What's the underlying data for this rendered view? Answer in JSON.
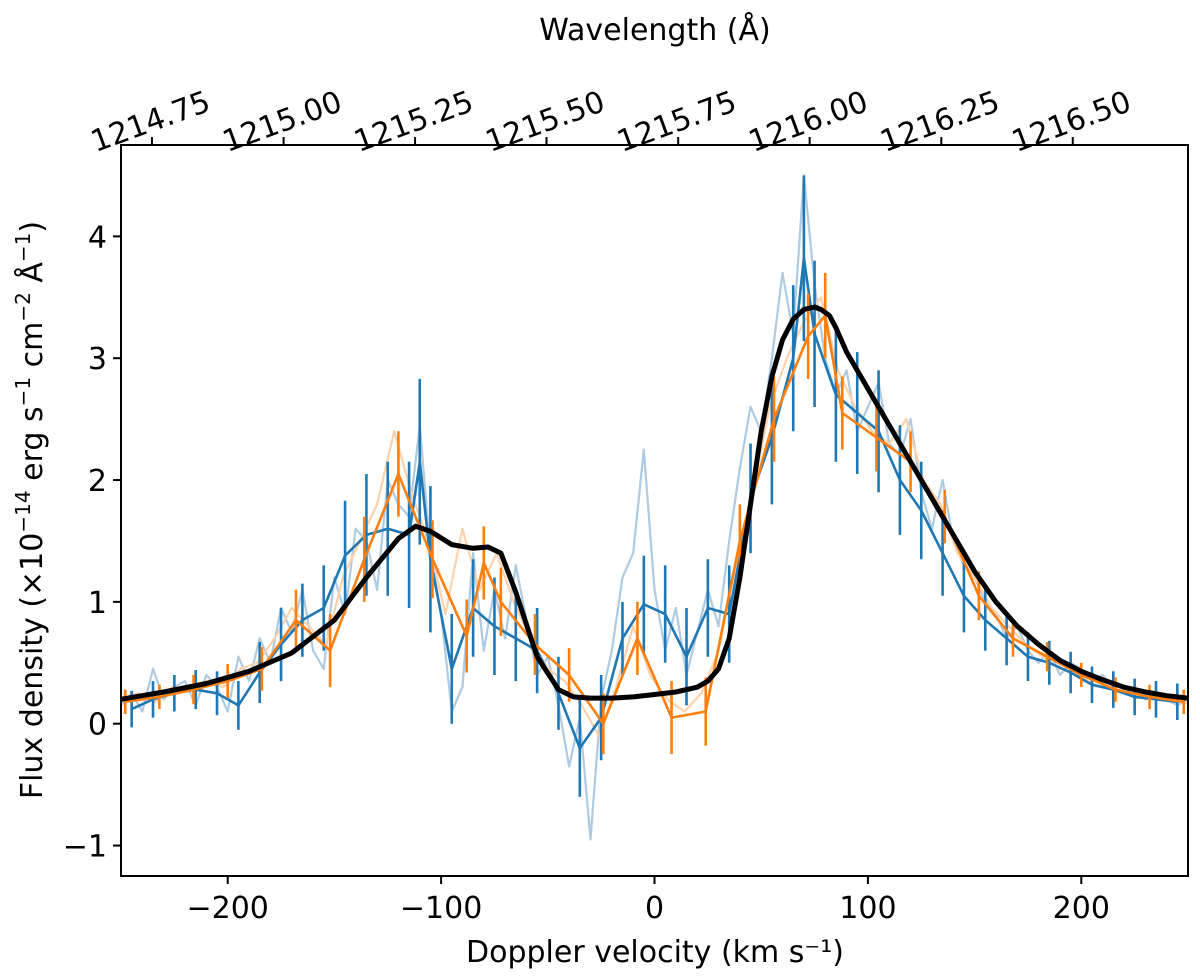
{
  "chart_data": {
    "type": "line",
    "title": "",
    "xlabel": "Doppler velocity (km s⁻¹)",
    "ylabel_parts": {
      "prefix": "Flux density (×10",
      "exp1": "−14",
      "mid1": " erg s",
      "exp2": "−1",
      "mid2": " cm",
      "exp3": "−2",
      "mid3": " Å",
      "exp4": "−1",
      "suffix": ")"
    },
    "top_xlabel": "Wavelength (Å)",
    "xlim": [
      -250,
      250
    ],
    "ylim": [
      -1.25,
      4.75
    ],
    "xticks": [
      -200,
      -100,
      0,
      100,
      200
    ],
    "xtick_labels": [
      "−200",
      "−100",
      "0",
      "100",
      "200"
    ],
    "yticks": [
      -1,
      0,
      1,
      2,
      3,
      4
    ],
    "ytick_labels": [
      "−1",
      "0",
      "1",
      "2",
      "3",
      "4"
    ],
    "top_xticks_velocity": [
      -235.5,
      -173.8,
      -112.2,
      -50.6,
      11.1,
      72.7,
      134.4,
      196.0
    ],
    "top_xtick_labels": [
      "1214.75",
      "1215.00",
      "1215.25",
      "1215.50",
      "1215.75",
      "1216.00",
      "1216.25",
      "1216.50"
    ],
    "top_xtick_rotation_deg": -20,
    "colors": {
      "model": "#000000",
      "blue": "#1f77b4",
      "blue_raw": "#aecbe2",
      "orange": "#ff7f0e",
      "orange_raw": "#ffd2ac"
    },
    "series": [
      {
        "name": "model",
        "style": "thick",
        "x": [
          -250,
          -230,
          -210,
          -190,
          -170,
          -150,
          -135,
          -120,
          -112,
          -105,
          -95,
          -85,
          -78,
          -72,
          -65,
          -55,
          -45,
          -38,
          -30,
          -20,
          -10,
          0,
          10,
          20,
          25,
          30,
          35,
          40,
          45,
          50,
          55,
          60,
          65,
          70,
          75,
          78,
          82,
          85,
          90,
          100,
          110,
          120,
          130,
          140,
          150,
          160,
          170,
          180,
          190,
          200,
          210,
          220,
          230,
          240,
          250
        ],
        "y": [
          0.2,
          0.26,
          0.33,
          0.43,
          0.58,
          0.85,
          1.2,
          1.52,
          1.62,
          1.58,
          1.47,
          1.44,
          1.45,
          1.4,
          1.08,
          0.55,
          0.28,
          0.22,
          0.21,
          0.21,
          0.22,
          0.24,
          0.26,
          0.3,
          0.35,
          0.45,
          0.7,
          1.2,
          1.8,
          2.4,
          2.85,
          3.15,
          3.32,
          3.4,
          3.42,
          3.4,
          3.35,
          3.25,
          3.05,
          2.75,
          2.45,
          2.15,
          1.85,
          1.55,
          1.25,
          1.0,
          0.8,
          0.65,
          0.52,
          0.43,
          0.36,
          0.3,
          0.26,
          0.23,
          0.21
        ]
      },
      {
        "name": "blue-binned",
        "style": "errorbar",
        "x": [
          -245,
          -235,
          -225,
          -215,
          -205,
          -195,
          -185,
          -175,
          -165,
          -155,
          -145,
          -135,
          -125,
          -115,
          -110,
          -105,
          -95,
          -85,
          -75,
          -65,
          -55,
          -45,
          -35,
          -25,
          -15,
          -5,
          5,
          15,
          25,
          35,
          45,
          55,
          65,
          70,
          75,
          85,
          95,
          105,
          115,
          125,
          135,
          145,
          155,
          165,
          175,
          185,
          195,
          205,
          215,
          225,
          235,
          245
        ],
        "y": [
          0.12,
          0.2,
          0.25,
          0.28,
          0.25,
          0.15,
          0.42,
          0.65,
          0.85,
          0.95,
          1.38,
          1.55,
          1.6,
          1.55,
          2.15,
          1.35,
          0.45,
          0.95,
          0.8,
          0.7,
          0.6,
          0.25,
          -0.2,
          0.05,
          0.7,
          0.98,
          0.9,
          0.55,
          0.95,
          0.9,
          1.85,
          2.35,
          3.0,
          3.82,
          3.2,
          2.7,
          2.55,
          2.4,
          2.0,
          1.75,
          1.4,
          1.05,
          0.85,
          0.7,
          0.55,
          0.5,
          0.42,
          0.32,
          0.28,
          0.22,
          0.2,
          0.18
        ],
        "err": [
          0.15,
          0.15,
          0.15,
          0.16,
          0.18,
          0.2,
          0.25,
          0.3,
          0.3,
          0.35,
          0.45,
          0.5,
          0.55,
          0.6,
          0.68,
          0.6,
          0.45,
          0.4,
          0.4,
          0.35,
          0.35,
          0.3,
          0.4,
          0.35,
          0.3,
          0.4,
          0.4,
          0.4,
          0.4,
          0.4,
          0.45,
          0.55,
          0.6,
          0.68,
          0.6,
          0.55,
          0.5,
          0.5,
          0.45,
          0.4,
          0.35,
          0.3,
          0.25,
          0.22,
          0.2,
          0.18,
          0.17,
          0.15,
          0.15,
          0.15,
          0.15,
          0.15
        ]
      },
      {
        "name": "orange-binned",
        "style": "errorbar",
        "x": [
          -248,
          -232,
          -216,
          -200,
          -184,
          -168,
          -152,
          -136,
          -120,
          -104,
          -88,
          -80,
          -72,
          -56,
          -40,
          -24,
          -8,
          8,
          24,
          40,
          56,
          72,
          80,
          88,
          104,
          120,
          136,
          152,
          168,
          184,
          200,
          216,
          232,
          248
        ],
        "y": [
          0.18,
          0.22,
          0.28,
          0.35,
          0.45,
          0.85,
          0.6,
          1.35,
          2.05,
          1.35,
          0.72,
          1.32,
          1.0,
          0.65,
          0.4,
          0.0,
          0.7,
          0.05,
          0.1,
          1.5,
          2.5,
          3.18,
          3.35,
          2.55,
          2.35,
          2.15,
          1.7,
          1.05,
          0.7,
          0.55,
          0.4,
          0.28,
          0.22,
          0.18
        ],
        "err": [
          0.1,
          0.1,
          0.12,
          0.14,
          0.18,
          0.25,
          0.3,
          0.35,
          0.35,
          0.32,
          0.3,
          0.3,
          0.28,
          0.25,
          0.22,
          0.25,
          0.3,
          0.3,
          0.28,
          0.3,
          0.35,
          0.35,
          0.35,
          0.3,
          0.28,
          0.25,
          0.22,
          0.2,
          0.15,
          0.12,
          0.1,
          0.1,
          0.1,
          0.1
        ]
      },
      {
        "name": "blue-raw",
        "style": "faint",
        "x": [
          -250,
          -245,
          -240,
          -235,
          -230,
          -225,
          -220,
          -215,
          -210,
          -205,
          -200,
          -195,
          -190,
          -185,
          -180,
          -175,
          -170,
          -165,
          -160,
          -155,
          -150,
          -145,
          -140,
          -135,
          -130,
          -125,
          -120,
          -115,
          -110,
          -105,
          -100,
          -95,
          -90,
          -85,
          -80,
          -75,
          -70,
          -65,
          -60,
          -55,
          -50,
          -45,
          -40,
          -35,
          -30,
          -25,
          -20,
          -15,
          -10,
          -5,
          0,
          5,
          10,
          15,
          20,
          25,
          30,
          35,
          40,
          45,
          50,
          55,
          60,
          65,
          70,
          75,
          80,
          85,
          90,
          95,
          100,
          105,
          110,
          115,
          120,
          125,
          130,
          135,
          140,
          145,
          150,
          155,
          160,
          165,
          170,
          175,
          180,
          185,
          190,
          195,
          200,
          205,
          210,
          215,
          220,
          225,
          230,
          235,
          240,
          245,
          250
        ],
        "y": [
          0.15,
          0.25,
          0.1,
          0.45,
          0.2,
          0.3,
          0.35,
          0.15,
          0.4,
          0.3,
          0.1,
          0.55,
          0.35,
          0.7,
          0.5,
          0.95,
          0.75,
          1.1,
          0.6,
          0.45,
          1.2,
          0.9,
          1.6,
          1.5,
          1.1,
          2.0,
          1.8,
          1.7,
          2.45,
          1.4,
          0.9,
          0.1,
          0.3,
          1.4,
          0.6,
          1.1,
          0.7,
          1.3,
          0.85,
          0.4,
          0.55,
          0.15,
          -0.35,
          0.05,
          -0.95,
          0.2,
          0.6,
          1.2,
          1.4,
          2.25,
          1.1,
          0.6,
          0.95,
          0.4,
          0.75,
          1.1,
          0.8,
          1.5,
          2.1,
          2.6,
          2.4,
          3.0,
          3.7,
          3.2,
          4.5,
          3.6,
          3.0,
          2.7,
          2.9,
          2.4,
          2.6,
          2.8,
          2.3,
          2.2,
          2.5,
          1.9,
          1.6,
          2.0,
          1.5,
          1.3,
          1.2,
          1.0,
          0.9,
          0.7,
          0.8,
          0.6,
          0.5,
          0.6,
          0.4,
          0.5,
          0.45,
          0.35,
          0.4,
          0.3,
          0.25,
          0.3,
          0.2,
          0.25,
          0.2,
          0.15,
          0.2
        ]
      },
      {
        "name": "orange-raw",
        "style": "faint",
        "x": [
          -250,
          -242,
          -234,
          -226,
          -218,
          -210,
          -202,
          -194,
          -186,
          -178,
          -170,
          -162,
          -154,
          -146,
          -138,
          -130,
          -122,
          -114,
          -106,
          -98,
          -90,
          -82,
          -74,
          -66,
          -58,
          -50,
          -42,
          -34,
          -26,
          -18,
          -10,
          -2,
          6,
          14,
          22,
          30,
          38,
          46,
          54,
          62,
          70,
          78,
          86,
          94,
          102,
          110,
          118,
          126,
          134,
          142,
          150,
          158,
          166,
          174,
          182,
          190,
          198,
          206,
          214,
          222,
          230,
          238,
          246,
          250
        ],
        "y": [
          0.2,
          0.25,
          0.18,
          0.3,
          0.28,
          0.35,
          0.3,
          0.45,
          0.5,
          0.7,
          0.95,
          0.8,
          0.65,
          1.2,
          1.5,
          1.8,
          2.4,
          1.9,
          1.5,
          0.9,
          1.6,
          1.1,
          1.4,
          1.0,
          0.7,
          0.45,
          0.35,
          0.15,
          -0.1,
          0.3,
          0.8,
          0.4,
          0.2,
          0.1,
          0.25,
          0.6,
          1.3,
          1.9,
          2.6,
          3.0,
          3.3,
          3.5,
          2.9,
          2.6,
          2.4,
          2.3,
          2.5,
          2.0,
          1.8,
          1.4,
          1.2,
          0.95,
          0.8,
          0.65,
          0.55,
          0.45,
          0.4,
          0.32,
          0.28,
          0.25,
          0.22,
          0.2,
          0.18,
          0.17
        ]
      }
    ]
  }
}
